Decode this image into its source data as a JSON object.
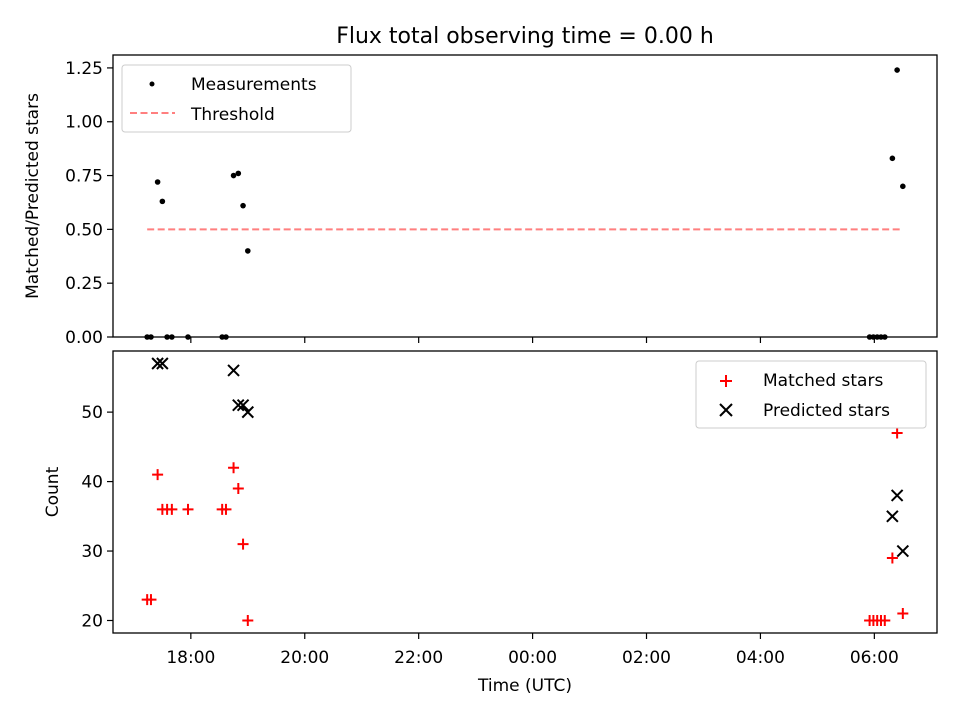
{
  "chart_data": [
    {
      "type": "scatter",
      "title": "Flux total observing time = 0.00 h",
      "xlabel": "",
      "ylabel": "Matched/Predicted stars",
      "ylim": [
        0,
        1.31
      ],
      "yticks": [
        "0.00",
        "0.25",
        "0.50",
        "0.75",
        "1.00",
        "1.25"
      ],
      "ytick_values": [
        0,
        0.25,
        0.5,
        0.75,
        1.0,
        1.25
      ],
      "legend_position": "top-left",
      "series": [
        {
          "name": "Measurements",
          "marker": "dot",
          "color": "#000000",
          "points": [
            {
              "x": "17:14",
              "y": 0
            },
            {
              "x": "17:18",
              "y": 0
            },
            {
              "x": "17:25",
              "y": 0.72
            },
            {
              "x": "17:30",
              "y": 0.63
            },
            {
              "x": "17:35",
              "y": 0
            },
            {
              "x": "17:40",
              "y": 0
            },
            {
              "x": "17:57",
              "y": 0
            },
            {
              "x": "18:33",
              "y": 0
            },
            {
              "x": "18:37",
              "y": 0
            },
            {
              "x": "18:45",
              "y": 0.75
            },
            {
              "x": "18:50",
              "y": 0.76
            },
            {
              "x": "18:55",
              "y": 0.61
            },
            {
              "x": "19:00",
              "y": 0.4
            },
            {
              "x": "05:55",
              "y": 0
            },
            {
              "x": "05:59",
              "y": 0
            },
            {
              "x": "06:03",
              "y": 0
            },
            {
              "x": "06:07",
              "y": 0
            },
            {
              "x": "06:11",
              "y": 0
            },
            {
              "x": "06:19",
              "y": 0.83
            },
            {
              "x": "06:24",
              "y": 1.24
            },
            {
              "x": "06:30",
              "y": 0.7
            }
          ]
        },
        {
          "name": "Threshold",
          "style": "dashed-line",
          "color": "#ff7f7f",
          "points": [
            {
              "x": "17:14",
              "y": 0.5
            },
            {
              "x": "06:30",
              "y": 0.5
            }
          ]
        }
      ]
    },
    {
      "type": "scatter",
      "title": "",
      "xlabel": "Time (UTC)",
      "ylabel": "Count",
      "ylim": [
        18.2,
        58.8
      ],
      "yticks": [
        "20",
        "30",
        "40",
        "50"
      ],
      "ytick_values": [
        20,
        30,
        40,
        50
      ],
      "xlim": [
        "16:38",
        "07:06"
      ],
      "xticks": [
        "18:00",
        "20:00",
        "22:00",
        "00:00",
        "02:00",
        "04:00",
        "06:00"
      ],
      "legend_position": "top-right",
      "series": [
        {
          "name": "Matched stars",
          "marker": "plus",
          "color": "#ff0000",
          "points": [
            {
              "x": "17:14",
              "y": 23
            },
            {
              "x": "17:18",
              "y": 23
            },
            {
              "x": "17:25",
              "y": 41
            },
            {
              "x": "17:30",
              "y": 36
            },
            {
              "x": "17:35",
              "y": 36
            },
            {
              "x": "17:40",
              "y": 36
            },
            {
              "x": "17:57",
              "y": 36
            },
            {
              "x": "18:33",
              "y": 36
            },
            {
              "x": "18:37",
              "y": 36
            },
            {
              "x": "18:45",
              "y": 42
            },
            {
              "x": "18:50",
              "y": 39
            },
            {
              "x": "18:55",
              "y": 31
            },
            {
              "x": "19:00",
              "y": 20
            },
            {
              "x": "05:55",
              "y": 20
            },
            {
              "x": "05:59",
              "y": 20
            },
            {
              "x": "06:03",
              "y": 20
            },
            {
              "x": "06:07",
              "y": 20
            },
            {
              "x": "06:11",
              "y": 20
            },
            {
              "x": "06:19",
              "y": 29
            },
            {
              "x": "06:24",
              "y": 47
            },
            {
              "x": "06:30",
              "y": 21
            }
          ]
        },
        {
          "name": "Predicted stars",
          "marker": "x",
          "color": "#000000",
          "points": [
            {
              "x": "17:25",
              "y": 57
            },
            {
              "x": "17:30",
              "y": 57
            },
            {
              "x": "18:45",
              "y": 56
            },
            {
              "x": "18:50",
              "y": 51
            },
            {
              "x": "18:55",
              "y": 51
            },
            {
              "x": "19:00",
              "y": 50
            },
            {
              "x": "06:19",
              "y": 35
            },
            {
              "x": "06:24",
              "y": 38
            },
            {
              "x": "06:30",
              "y": 30
            }
          ]
        }
      ]
    }
  ]
}
